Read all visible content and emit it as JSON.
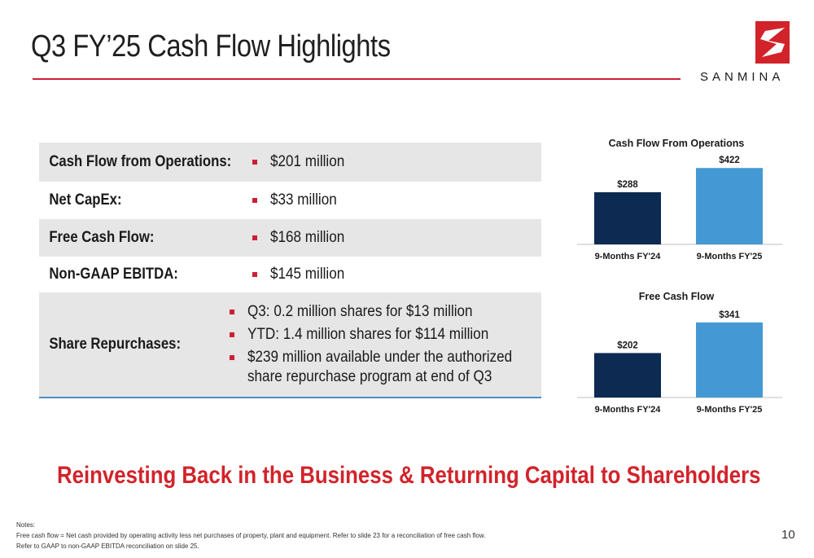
{
  "header": {
    "title": "Q3 FY’25 Cash Flow Highlights",
    "logo_text": "SANMINA",
    "accent_color": "#cc1f36"
  },
  "highlights": [
    {
      "label": "Cash Flow from Operations:",
      "values": [
        "$201 million"
      ]
    },
    {
      "label": "Net CapEx:",
      "values": [
        "$33 million"
      ]
    },
    {
      "label": "Free Cash Flow:",
      "values": [
        "$168 million"
      ]
    },
    {
      "label": "Non-GAAP EBITDA:",
      "values": [
        "$145 million"
      ]
    },
    {
      "label": "Share Repurchases:",
      "values": [
        "Q3: 0.2 million shares for $13 million",
        "YTD: 1.4 million shares for $114 million",
        "$239 million available under the authorized",
        "share repurchase program at end of Q3"
      ]
    }
  ],
  "tagline": "Reinvesting Back in the Business & Returning Capital to Shareholders",
  "notes": {
    "heading": "Notes:",
    "line1": "Free cash flow = Net cash provided by operating activity less net purchases of property, plant and equipment.  Refer to slide 23 for a reconciliation of free cash flow.",
    "line2": "Refer to GAAP to non-GAAP EBITDA reconciliation on slide 25."
  },
  "page_number": "10",
  "chart_data": [
    {
      "type": "bar",
      "title": "Cash Flow From Operations",
      "categories": [
        "9-Months FY'24",
        "9-Months FY'25"
      ],
      "values": [
        288,
        422
      ],
      "data_labels": [
        "$288",
        "$422"
      ],
      "colors": [
        "#0d2a52",
        "#4499d4"
      ],
      "ylim": [
        0,
        450
      ],
      "grid": false
    },
    {
      "type": "bar",
      "title": "Free Cash Flow",
      "categories": [
        "9-Months FY'24",
        "9-Months FY'25"
      ],
      "values": [
        202,
        341
      ],
      "data_labels": [
        "$202",
        "$341"
      ],
      "colors": [
        "#0d2a52",
        "#4499d4"
      ],
      "ylim": [
        0,
        370
      ],
      "grid": false
    }
  ]
}
